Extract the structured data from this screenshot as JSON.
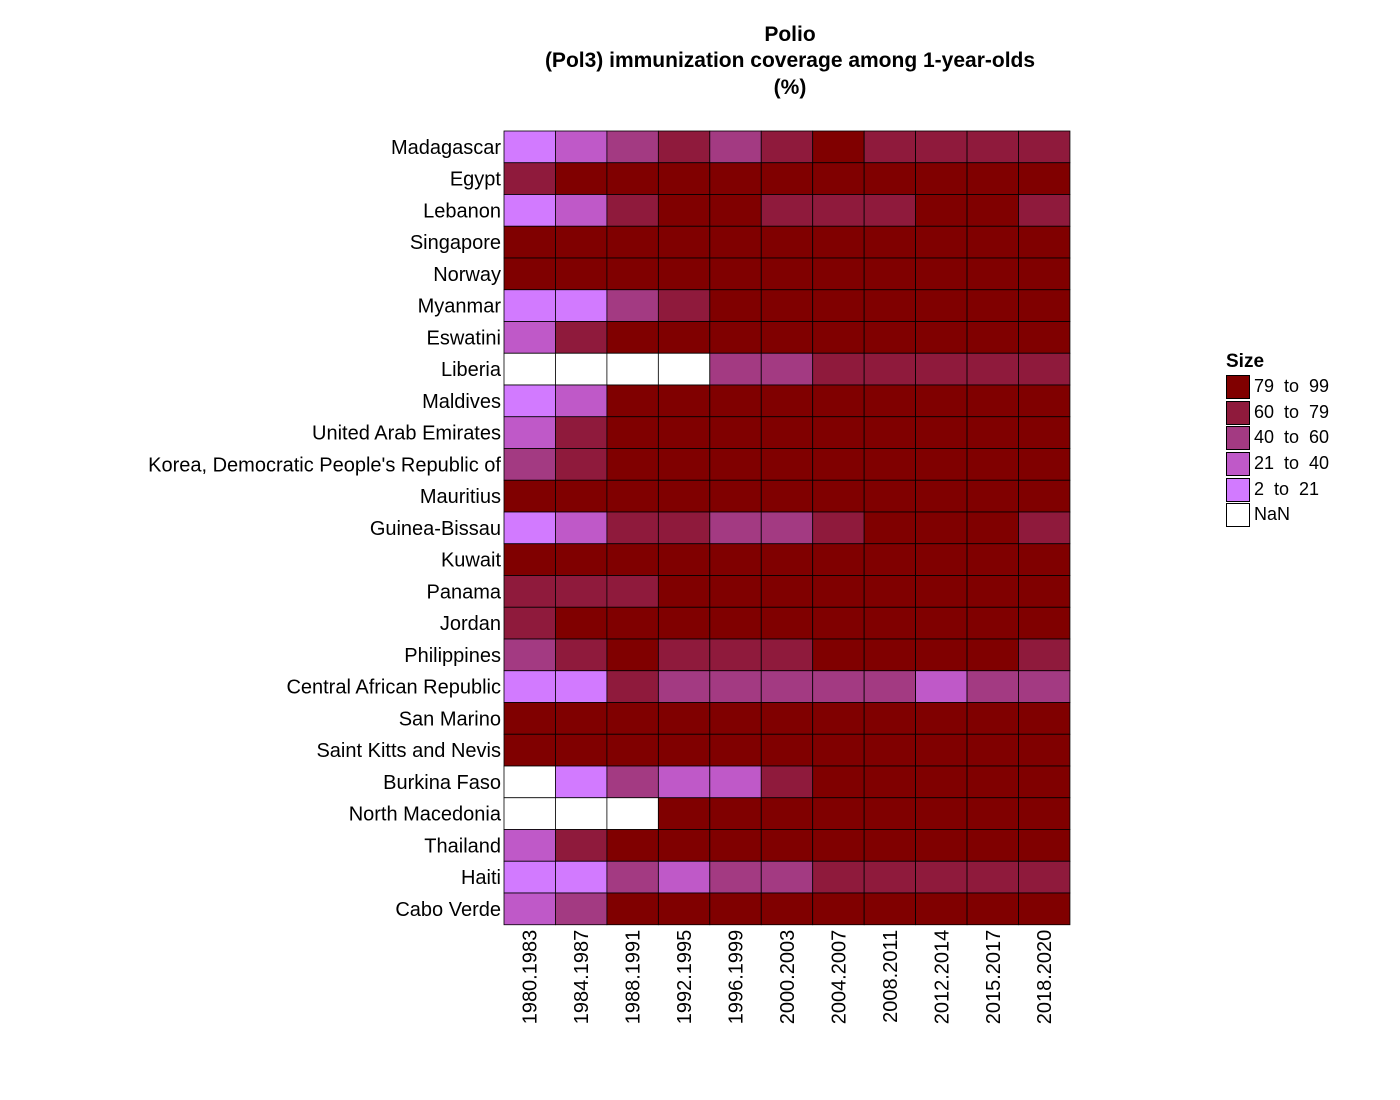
{
  "chart_data": {
    "type": "heatmap",
    "title_lines": [
      "Polio",
      "(Pol3) immunization coverage among 1-year-olds",
      "(%)"
    ],
    "x_categories": [
      "1980.1983",
      "1984.1987",
      "1988.1991",
      "1992.1995",
      "1996.1999",
      "2000.2003",
      "2004.2007",
      "2008.2011",
      "2012.2014",
      "2015.2017",
      "2018.2020"
    ],
    "y_categories": [
      "Madagascar",
      "Egypt",
      "Lebanon",
      "Singapore",
      "Norway",
      "Myanmar",
      "Eswatini",
      "Liberia",
      "Maldives",
      "United Arab Emirates",
      "Korea, Democratic People's Republic of",
      "Mauritius",
      "Guinea-Bissau",
      "Kuwait",
      "Panama",
      "Jordan",
      "Philippines",
      "Central African Republic",
      "San Marino",
      "Saint Kitts and Nevis",
      "Burkina Faso",
      "North Macedonia",
      "Thailand",
      "Haiti",
      "Cabo Verde"
    ],
    "bin_levels": [
      [
        1,
        2,
        3,
        4,
        3,
        4,
        5,
        4,
        4,
        4,
        4
      ],
      [
        4,
        5,
        5,
        5,
        5,
        5,
        5,
        5,
        5,
        5,
        5
      ],
      [
        1,
        2,
        4,
        5,
        5,
        4,
        4,
        4,
        5,
        5,
        4
      ],
      [
        5,
        5,
        5,
        5,
        5,
        5,
        5,
        5,
        5,
        5,
        5
      ],
      [
        5,
        5,
        5,
        5,
        5,
        5,
        5,
        5,
        5,
        5,
        5
      ],
      [
        1,
        1,
        3,
        4,
        5,
        5,
        5,
        5,
        5,
        5,
        5
      ],
      [
        2,
        4,
        5,
        5,
        5,
        5,
        5,
        5,
        5,
        5,
        5
      ],
      [
        0,
        0,
        0,
        0,
        3,
        3,
        4,
        4,
        4,
        4,
        4
      ],
      [
        1,
        2,
        5,
        5,
        5,
        5,
        5,
        5,
        5,
        5,
        5
      ],
      [
        2,
        4,
        5,
        5,
        5,
        5,
        5,
        5,
        5,
        5,
        5
      ],
      [
        3,
        4,
        5,
        5,
        5,
        5,
        5,
        5,
        5,
        5,
        5
      ],
      [
        5,
        5,
        5,
        5,
        5,
        5,
        5,
        5,
        5,
        5,
        5
      ],
      [
        1,
        2,
        4,
        4,
        3,
        3,
        4,
        5,
        5,
        5,
        4
      ],
      [
        5,
        5,
        5,
        5,
        5,
        5,
        5,
        5,
        5,
        5,
        5
      ],
      [
        4,
        4,
        4,
        5,
        5,
        5,
        5,
        5,
        5,
        5,
        5
      ],
      [
        4,
        5,
        5,
        5,
        5,
        5,
        5,
        5,
        5,
        5,
        5
      ],
      [
        3,
        4,
        5,
        4,
        4,
        4,
        5,
        5,
        5,
        5,
        4
      ],
      [
        1,
        1,
        4,
        3,
        3,
        3,
        3,
        3,
        2,
        3,
        3
      ],
      [
        5,
        5,
        5,
        5,
        5,
        5,
        5,
        5,
        5,
        5,
        5
      ],
      [
        5,
        5,
        5,
        5,
        5,
        5,
        5,
        5,
        5,
        5,
        5
      ],
      [
        0,
        1,
        3,
        2,
        2,
        4,
        5,
        5,
        5,
        5,
        5
      ],
      [
        0,
        0,
        0,
        5,
        5,
        5,
        5,
        5,
        5,
        5,
        5
      ],
      [
        2,
        4,
        5,
        5,
        5,
        5,
        5,
        5,
        5,
        5,
        5
      ],
      [
        1,
        1,
        3,
        2,
        3,
        3,
        4,
        4,
        4,
        4,
        4
      ],
      [
        2,
        3,
        5,
        5,
        5,
        5,
        5,
        5,
        5,
        5,
        5
      ]
    ],
    "legend": {
      "title": "Size",
      "entries": [
        {
          "level": 5,
          "label": "79  to  99",
          "color": "#800000"
        },
        {
          "level": 4,
          "label": "60  to  79",
          "color": "#8f1a3c"
        },
        {
          "level": 3,
          "label": "40  to  60",
          "color": "#a33a82"
        },
        {
          "level": 2,
          "label": "21  to  40",
          "color": "#bf59c8"
        },
        {
          "level": 1,
          "label": "2  to  21",
          "color": "#d27aff"
        },
        {
          "level": 0,
          "label": "NaN",
          "color": "#ffffff"
        }
      ]
    }
  }
}
